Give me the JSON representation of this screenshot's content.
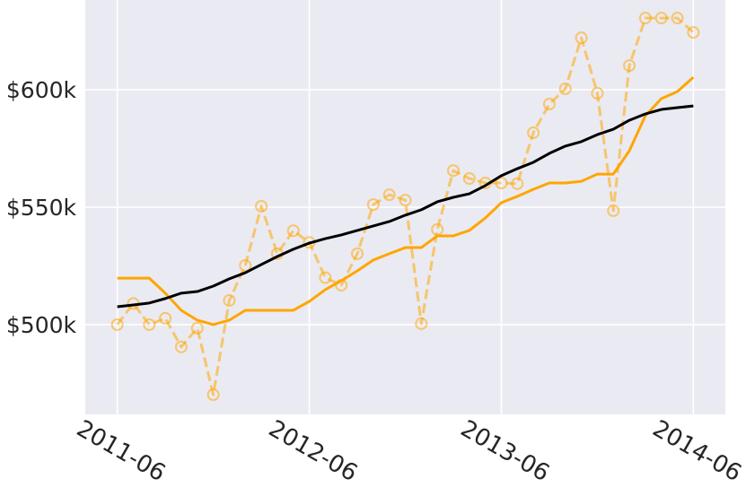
{
  "chart_data": {
    "type": "line",
    "x": [
      "2011-06",
      "2011-07",
      "2011-08",
      "2011-09",
      "2011-10",
      "2011-11",
      "2011-12",
      "2012-01",
      "2012-02",
      "2012-03",
      "2012-04",
      "2012-05",
      "2012-06",
      "2012-07",
      "2012-08",
      "2012-09",
      "2012-10",
      "2012-11",
      "2012-12",
      "2013-01",
      "2013-02",
      "2013-03",
      "2013-04",
      "2013-05",
      "2013-06",
      "2013-07",
      "2013-08",
      "2013-09",
      "2013-10",
      "2013-11",
      "2013-12",
      "2014-01",
      "2014-02",
      "2014-03",
      "2014-04",
      "2014-05",
      "2014-06"
    ],
    "series": [
      {
        "color": "#ffa500",
        "linestyle": "dashed",
        "marker": "circle",
        "alpha": 0.55,
        "values": [
          500000,
          509000,
          500000,
          502700,
          490500,
          498500,
          470200,
          510300,
          525200,
          550400,
          530200,
          540000,
          535000,
          520000,
          516800,
          530200,
          551100,
          555300,
          553000,
          500400,
          540500,
          565600,
          562200,
          560300,
          560300,
          560000,
          581700,
          593900,
          600400,
          622100,
          598500,
          548500,
          610300,
          630500,
          630500,
          630500,
          624400
        ]
      },
      {
        "color": "#ffa500",
        "linestyle": "solid",
        "marker": "none",
        "alpha": 1,
        "values": [
          519800,
          519800,
          519800,
          513400,
          506100,
          501900,
          500000,
          501900,
          506100,
          506100,
          506100,
          506100,
          509900,
          514900,
          518700,
          522900,
          527500,
          530200,
          532800,
          532800,
          537800,
          537800,
          540100,
          545400,
          551900,
          554600,
          557600,
          560300,
          560300,
          561000,
          564100,
          564100,
          574000,
          588900,
          596200,
          599200,
          605300
        ]
      },
      {
        "color": "#000000",
        "linestyle": "solid",
        "marker": "none",
        "alpha": 1,
        "values": [
          507600,
          508400,
          509200,
          511100,
          513400,
          514100,
          516400,
          519500,
          522100,
          525600,
          529000,
          532100,
          534700,
          536600,
          538200,
          540100,
          542000,
          543900,
          546600,
          548900,
          552300,
          554200,
          555700,
          559200,
          563400,
          566400,
          569100,
          572900,
          576000,
          577900,
          580900,
          583200,
          587000,
          589700,
          591600,
          592400,
          593100
        ]
      }
    ],
    "xlim": [
      "2011-04",
      "2014-08"
    ],
    "xticks": [
      "2011-06",
      "2012-06",
      "2013-06",
      "2014-06"
    ],
    "ylim": [
      461800,
      638200
    ],
    "yticks": [
      {
        "value": 500000,
        "label": "$500k"
      },
      {
        "value": 550000,
        "label": "$550k"
      },
      {
        "value": 600000,
        "label": "$600k"
      }
    ],
    "grid": true,
    "background": "#eaeaf2"
  }
}
